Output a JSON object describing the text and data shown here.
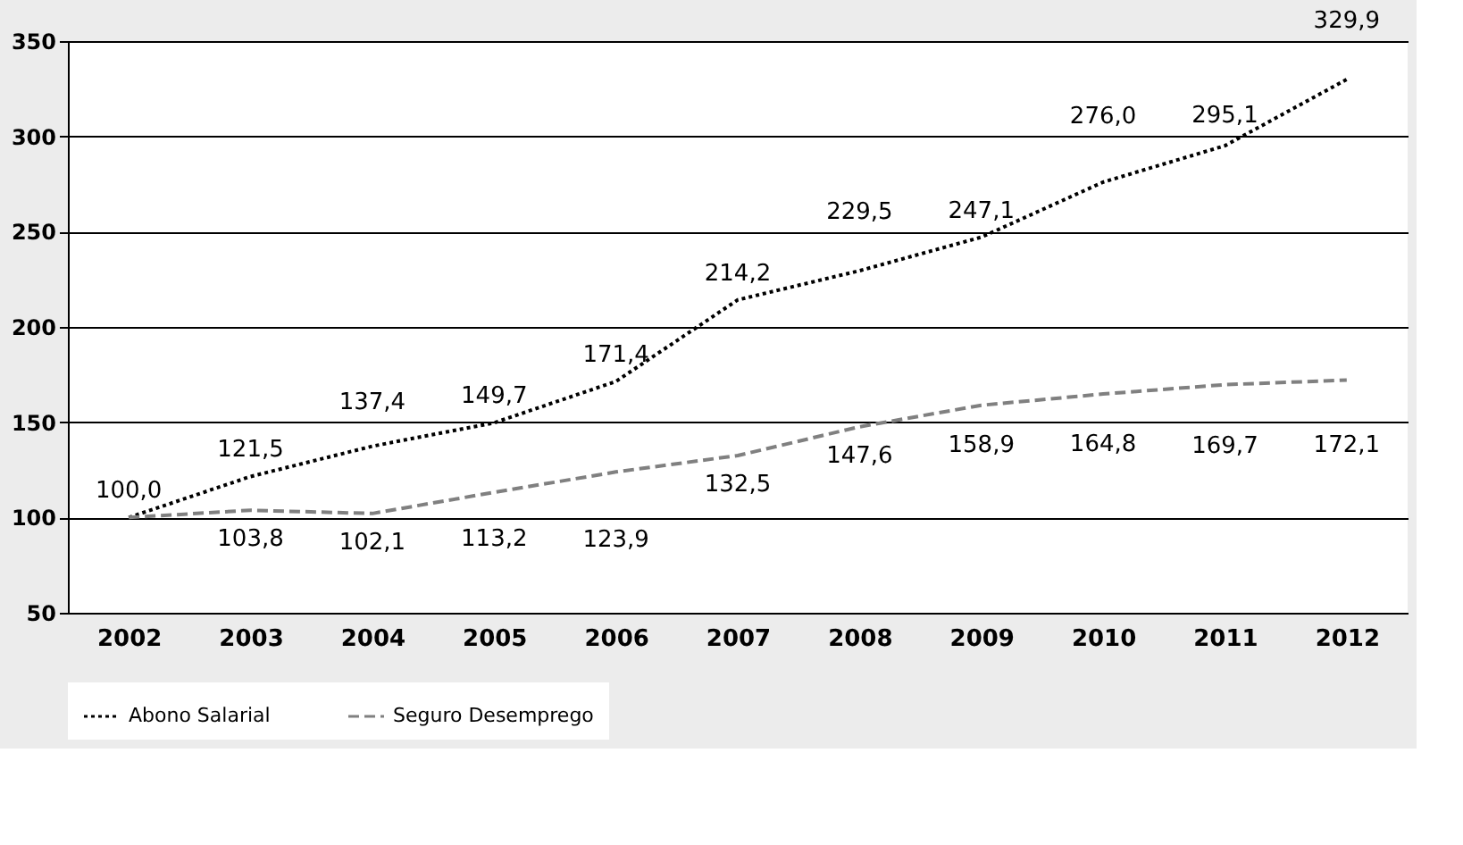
{
  "chart_data": {
    "type": "line",
    "categories": [
      "2002",
      "2003",
      "2004",
      "2005",
      "2006",
      "2007",
      "2008",
      "2009",
      "2010",
      "2011",
      "2012"
    ],
    "series": [
      {
        "name": "Abono Salarial",
        "color": "#000000",
        "line_style": "dotted",
        "values": [
          100.0,
          121.5,
          137.4,
          149.7,
          171.4,
          214.2,
          229.5,
          247.1,
          276.0,
          295.1,
          329.9
        ],
        "value_labels": [
          "100,0",
          "121,5",
          "137,4",
          "149,7",
          "171,4",
          "214,2",
          "229,5",
          "247,1",
          "276,0",
          "295,1",
          "329,9"
        ]
      },
      {
        "name": "Seguro Desemprego",
        "color": "#808080",
        "line_style": "dashed",
        "values": [
          100.0,
          103.8,
          102.1,
          113.2,
          123.9,
          132.5,
          147.6,
          158.9,
          164.8,
          169.7,
          172.1
        ],
        "value_labels": [
          null,
          "103,8",
          "102,1",
          "113,2",
          "123,9",
          "132,5",
          "147,6",
          "158,9",
          "164,8",
          "169,7",
          "172,1"
        ]
      }
    ],
    "ylim": [
      50,
      350
    ],
    "yticks": [
      50,
      100,
      150,
      200,
      250,
      300,
      350
    ],
    "grid": "y",
    "legend": "bottom",
    "marker": "none"
  }
}
